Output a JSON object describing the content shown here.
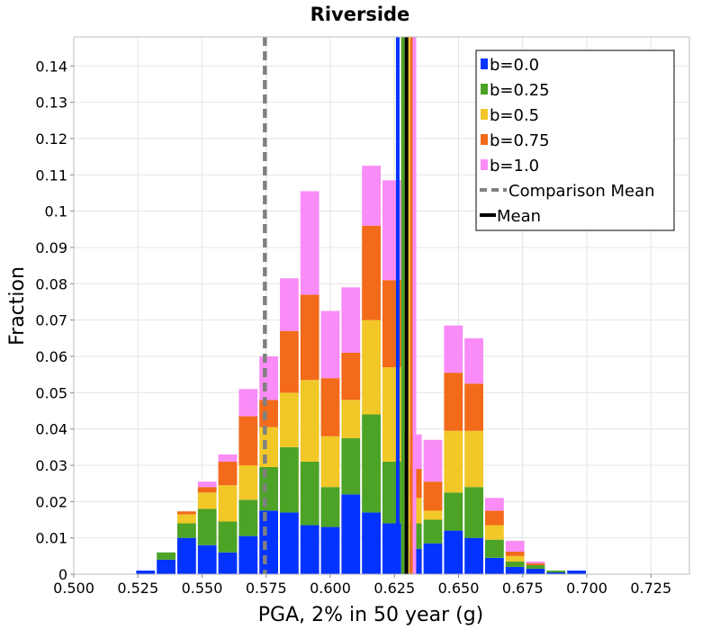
{
  "chart_data": {
    "type": "bar",
    "stacked": true,
    "title": "Riverside",
    "xlabel": "PGA, 2% in 50 year (g)",
    "ylabel": "Fraction",
    "xlim": [
      0.5,
      0.74
    ],
    "ylim": [
      0,
      0.148
    ],
    "x_ticks": [
      0.5,
      0.525,
      0.55,
      0.575,
      0.6,
      0.625,
      0.65,
      0.675,
      0.7,
      0.725
    ],
    "x_tick_labels": [
      "0.500",
      "0.525",
      "0.550",
      "0.575",
      "0.600",
      "0.625",
      "0.650",
      "0.675",
      "0.700",
      "0.725"
    ],
    "y_ticks": [
      0,
      0.01,
      0.02,
      0.03,
      0.04,
      0.05,
      0.06,
      0.07,
      0.08,
      0.09,
      0.1,
      0.11,
      0.12,
      0.13,
      0.14
    ],
    "y_tick_labels": [
      "0",
      "0.01",
      "0.02",
      "0.03",
      "0.04",
      "0.05",
      "0.06",
      "0.07",
      "0.08",
      "0.09",
      "0.1",
      "0.11",
      "0.12",
      "0.13",
      "0.14"
    ],
    "grid": true,
    "legend_position": "top-right",
    "bin_starts": [
      0.5,
      0.508,
      0.516,
      0.524,
      0.532,
      0.54,
      0.548,
      0.556,
      0.564,
      0.572,
      0.58,
      0.588,
      0.596,
      0.604,
      0.612,
      0.62,
      0.628,
      0.636,
      0.644,
      0.652,
      0.66,
      0.668,
      0.676,
      0.684,
      0.692,
      0.7,
      0.708,
      0.716,
      0.724,
      0.732
    ],
    "bin_width": 0.008,
    "series": [
      {
        "name": "b=0.0",
        "color": "#0433ff",
        "values": [
          0,
          0,
          0,
          0.001,
          0.004,
          0.01,
          0.008,
          0.006,
          0.0105,
          0.0175,
          0.017,
          0.0135,
          0.013,
          0.022,
          0.017,
          0.014,
          0.007,
          0.0085,
          0.012,
          0.01,
          0.0045,
          0.002,
          0.0015,
          0.0005,
          0.001,
          0,
          0,
          0,
          0,
          0
        ]
      },
      {
        "name": "b=0.25",
        "color": "#4ca326",
        "values": [
          0,
          0,
          0,
          0,
          0.002,
          0.004,
          0.01,
          0.0085,
          0.01,
          0.012,
          0.018,
          0.0175,
          0.011,
          0.0155,
          0.027,
          0.017,
          0.007,
          0.0065,
          0.0105,
          0.014,
          0.005,
          0.0015,
          0.001,
          0.0005,
          0,
          0,
          0,
          0,
          0,
          0
        ]
      },
      {
        "name": "b=0.5",
        "color": "#f2c728",
        "values": [
          0,
          0,
          0,
          0,
          0,
          0.0025,
          0.0045,
          0.01,
          0.0095,
          0.011,
          0.015,
          0.0225,
          0.014,
          0.0105,
          0.026,
          0.026,
          0.007,
          0.0025,
          0.017,
          0.0155,
          0.004,
          0.0015,
          0,
          0,
          0,
          0,
          0,
          0,
          0,
          0
        ]
      },
      {
        "name": "b=0.75",
        "color": "#f26a1a",
        "values": [
          0,
          0,
          0,
          0,
          0,
          0.0008,
          0.0015,
          0.0065,
          0.0135,
          0.0075,
          0.017,
          0.0235,
          0.016,
          0.013,
          0.026,
          0.024,
          0.008,
          0.008,
          0.016,
          0.013,
          0.004,
          0.0012,
          0.0005,
          0,
          0,
          0,
          0,
          0,
          0,
          0
        ]
      },
      {
        "name": "b=1.0",
        "color": "#f98cf6",
        "values": [
          0,
          0,
          0,
          0,
          0,
          0,
          0.0015,
          0.002,
          0.0075,
          0.012,
          0.0145,
          0.0285,
          0.0185,
          0.018,
          0.0165,
          0.0275,
          0.0095,
          0.0115,
          0.013,
          0.0125,
          0.0035,
          0.003,
          0.0005,
          0,
          0,
          0,
          0,
          0,
          0,
          0
        ]
      }
    ],
    "lines": [
      {
        "label": "b=0.0 mean",
        "x": 0.6263,
        "color": "#0433ff",
        "style": "solid"
      },
      {
        "label": "b=0.25 mean",
        "x": 0.6283,
        "color": "#4ca326",
        "style": "solid"
      },
      {
        "label": "b=0.5 mean",
        "x": 0.6303,
        "color": "#f2c728",
        "style": "solid"
      },
      {
        "label": "b=0.75 mean",
        "x": 0.6318,
        "color": "#f26a1a",
        "style": "solid"
      },
      {
        "label": "b=1.0 mean",
        "x": 0.6328,
        "color": "#f98cf6",
        "style": "solid"
      },
      {
        "label": "Comparison Mean",
        "x": 0.5745,
        "color": "#808080",
        "style": "dashed"
      },
      {
        "label": "Mean",
        "x": 0.6297,
        "color": "#000000",
        "style": "solid"
      }
    ],
    "legend": [
      {
        "label": "b=0.0",
        "color": "#0433ff",
        "kind": "box"
      },
      {
        "label": "b=0.25",
        "color": "#4ca326",
        "kind": "box"
      },
      {
        "label": "b=0.5",
        "color": "#f2c728",
        "kind": "box"
      },
      {
        "label": "b=0.75",
        "color": "#f26a1a",
        "kind": "box"
      },
      {
        "label": "b=1.0",
        "color": "#f98cf6",
        "kind": "box"
      },
      {
        "label": "Comparison Mean",
        "color": "#808080",
        "kind": "dashed-line"
      },
      {
        "label": "Mean",
        "color": "#000000",
        "kind": "line"
      }
    ]
  }
}
